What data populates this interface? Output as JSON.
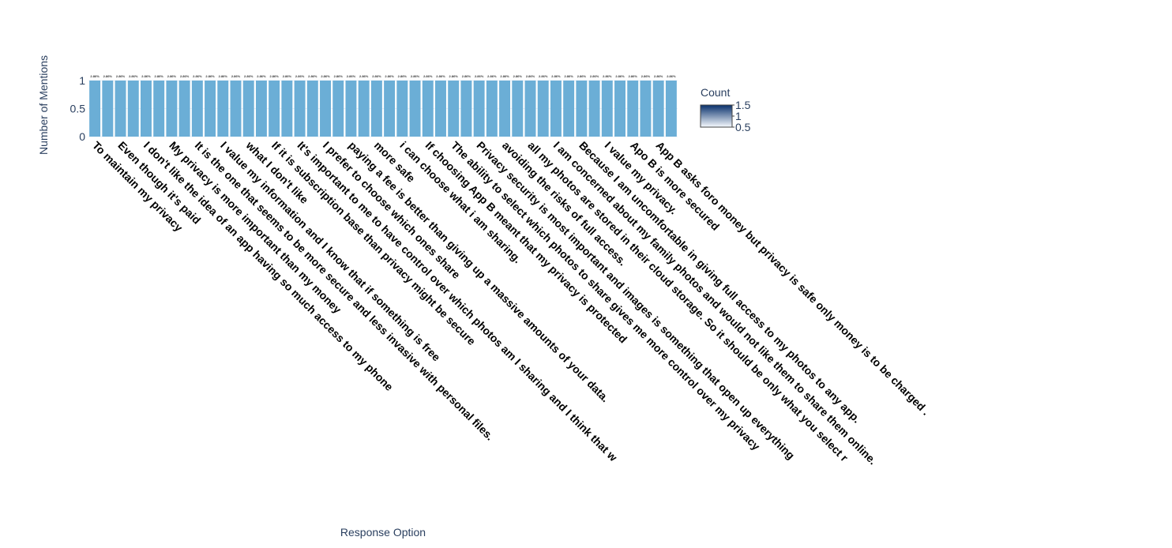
{
  "chart_data": {
    "type": "bar",
    "x_label": "Response Option",
    "y_label": "Number of Mentions",
    "categories": [
      "To maintain my privacy",
      null,
      "Even though it's paid",
      null,
      "I don't like the idea of an app having so much access to my phone",
      null,
      "My privacy is more important than my money",
      null,
      "It is the one that seems to be more secure and less invasive with personal files.",
      null,
      "I value my information and I know that if something is free",
      null,
      "what I don't like",
      null,
      "If it is subscription base than privacy might be secure",
      null,
      "It's important to me to have control over which photos am I sharing and I think that w",
      null,
      "I prefer to choose which ones share",
      null,
      "paying a fee is better than giving up a massive amounts of your data.",
      null,
      "more safe",
      null,
      "i can choose what i am sharing.",
      null,
      "If choosing App B meant that my privacy is protected",
      null,
      "The ability to select which photos to share gives me more control over my privacy",
      null,
      "Privacy security is most important and images is something that open up everything",
      null,
      "avoiding the risks of full access.",
      null,
      "all my photos are stored in their cloud storage. So it should be  only what you select r",
      null,
      "I am concerned about my family photos and would not like them to share them online.",
      null,
      "Because I am uncomfortable in giving full access to my photos to any app.",
      null,
      "I value my privacy.",
      null,
      "Apo B is more secured",
      null,
      "App B asks foro money but privacy is safe only money is to be charged .",
      null
    ],
    "values": [
      1,
      1,
      1,
      1,
      1,
      1,
      1,
      1,
      1,
      1,
      1,
      1,
      1,
      1,
      1,
      1,
      1,
      1,
      1,
      1,
      1,
      1,
      1,
      1,
      1,
      1,
      1,
      1,
      1,
      1,
      1,
      1,
      1,
      1,
      1,
      1,
      1,
      1,
      1,
      1,
      1,
      1,
      1,
      1,
      1,
      1
    ],
    "text": [
      "2.86%",
      "2.86%",
      "2.86%",
      "2.86%",
      "2.86%",
      "2.86%",
      "2.86%",
      "2.86%",
      "2.86%",
      "2.86%",
      "2.86%",
      "2.86%",
      "2.86%",
      "2.86%",
      "2.86%",
      "2.86%",
      "2.86%",
      "2.86%",
      "2.86%",
      "2.86%",
      "2.86%",
      "2.86%",
      "2.86%",
      "2.86%",
      "2.86%",
      "2.86%",
      "2.86%",
      "2.86%",
      "2.86%",
      "2.86%",
      "2.86%",
      "2.86%",
      "2.86%",
      "2.86%",
      "2.86%",
      "2.86%",
      "2.86%",
      "2.86%",
      "2.86%",
      "2.86%",
      "2.86%",
      "2.86%",
      "2.86%",
      "2.86%",
      "2.86%",
      "2.86%"
    ],
    "color": "#6baed6",
    "ylim": [
      0,
      1
    ],
    "yticks": [
      0,
      0.5,
      1
    ],
    "colorbar": {
      "title": "Count",
      "colors": [
        "#f7fbff",
        "#08306b"
      ],
      "lim": [
        0.5,
        1.5
      ],
      "ticks": [
        0.5,
        1,
        1.5
      ]
    }
  }
}
